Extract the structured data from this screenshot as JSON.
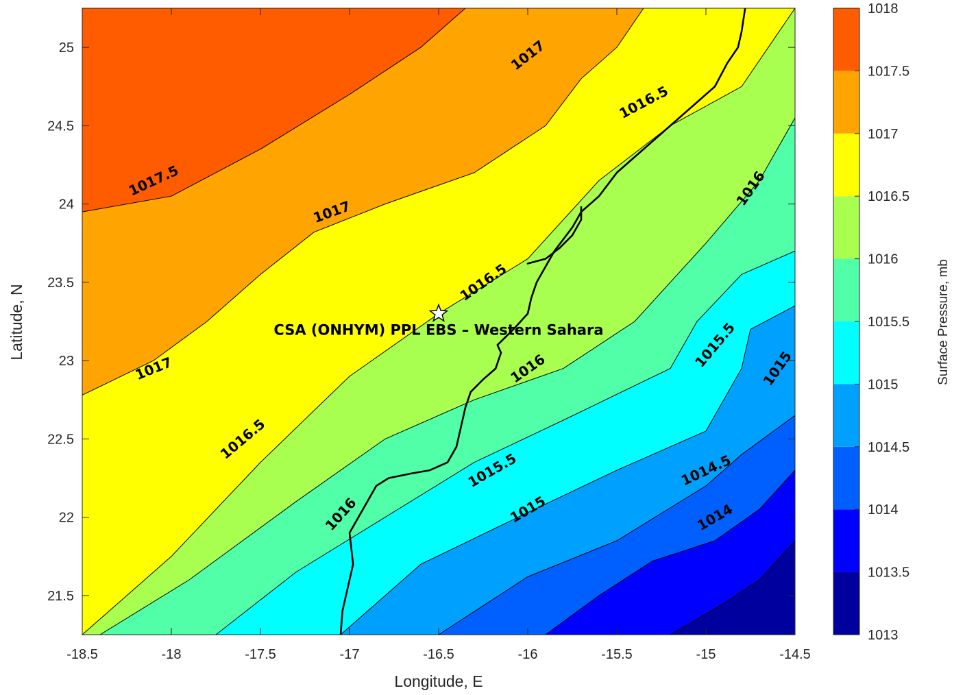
{
  "chart_data": {
    "type": "contour",
    "xlabel": "Longitude, E",
    "ylabel": "Latitude, N",
    "xlim": [
      -18.5,
      -14.5
    ],
    "ylim": [
      21.25,
      25.25
    ],
    "xticks": [
      -18.5,
      -18,
      -17.5,
      -17,
      -16.5,
      -16,
      -15.5,
      -15,
      -14.5
    ],
    "yticks": [
      21.5,
      22,
      22.5,
      23,
      23.5,
      24,
      24.5,
      25
    ],
    "colorbar": {
      "label": "Surface Pressure, mb",
      "levels": [
        1013,
        1013.5,
        1014,
        1014.5,
        1015,
        1015.5,
        1016,
        1016.5,
        1017,
        1017.5,
        1018
      ],
      "colors": [
        "#00009f",
        "#0000ff",
        "#0060ff",
        "#00a0ff",
        "#00ffff",
        "#50ffa8",
        "#a8ff50",
        "#ffff00",
        "#ffa400",
        "#ff5c00",
        "#ff0000"
      ]
    },
    "contour_levels": [
      {
        "level": 1013.5,
        "points": [
          [
            -15.2,
            21.25
          ],
          [
            -14.9,
            21.45
          ],
          [
            -14.7,
            21.6
          ],
          [
            -14.5,
            21.85
          ]
        ]
      },
      {
        "level": 1014.0,
        "points": [
          [
            -15.9,
            21.25
          ],
          [
            -15.6,
            21.5
          ],
          [
            -15.3,
            21.72
          ],
          [
            -14.95,
            21.85
          ],
          [
            -14.7,
            22.05
          ],
          [
            -14.5,
            22.3
          ]
        ]
      },
      {
        "level": 1014.5,
        "points": [
          [
            -16.5,
            21.25
          ],
          [
            -16.0,
            21.62
          ],
          [
            -15.5,
            21.85
          ],
          [
            -15.0,
            22.2
          ],
          [
            -14.8,
            22.4
          ],
          [
            -14.5,
            22.65
          ]
        ]
      },
      {
        "level": 1015.0,
        "points": [
          [
            -17.05,
            21.25
          ],
          [
            -16.6,
            21.7
          ],
          [
            -16.0,
            22.03
          ],
          [
            -15.5,
            22.3
          ],
          [
            -15.0,
            22.55
          ],
          [
            -14.8,
            22.95
          ],
          [
            -14.75,
            23.2
          ],
          [
            -14.5,
            23.35
          ]
        ]
      },
      {
        "level": 1015.5,
        "points": [
          [
            -17.75,
            21.25
          ],
          [
            -17.3,
            21.65
          ],
          [
            -16.8,
            22.0
          ],
          [
            -16.3,
            22.35
          ],
          [
            -15.8,
            22.62
          ],
          [
            -15.2,
            22.95
          ],
          [
            -15.05,
            23.25
          ],
          [
            -14.8,
            23.55
          ],
          [
            -14.5,
            23.7
          ]
        ]
      },
      {
        "level": 1016.0,
        "points": [
          [
            -18.4,
            21.25
          ],
          [
            -17.9,
            21.6
          ],
          [
            -17.3,
            22.1
          ],
          [
            -16.8,
            22.5
          ],
          [
            -16.3,
            22.75
          ],
          [
            -15.8,
            22.95
          ],
          [
            -15.4,
            23.25
          ],
          [
            -15.0,
            23.75
          ],
          [
            -14.7,
            24.15
          ],
          [
            -14.5,
            24.55
          ]
        ]
      },
      {
        "level": 1016.5,
        "points": [
          [
            -18.5,
            21.25
          ],
          [
            -18.0,
            21.75
          ],
          [
            -17.5,
            22.35
          ],
          [
            -17.0,
            22.9
          ],
          [
            -16.5,
            23.3
          ],
          [
            -16.0,
            23.65
          ],
          [
            -15.6,
            24.15
          ],
          [
            -15.2,
            24.5
          ],
          [
            -14.8,
            24.75
          ],
          [
            -14.5,
            25.25
          ]
        ]
      },
      {
        "level": 1017.0,
        "points": [
          [
            -18.5,
            22.78
          ],
          [
            -18.1,
            23.0
          ],
          [
            -17.8,
            23.25
          ],
          [
            -17.5,
            23.55
          ],
          [
            -17.2,
            23.82
          ],
          [
            -16.8,
            24.0
          ],
          [
            -16.3,
            24.2
          ],
          [
            -15.9,
            24.5
          ],
          [
            -15.7,
            24.8
          ],
          [
            -15.5,
            25.0
          ],
          [
            -15.35,
            25.25
          ]
        ]
      },
      {
        "level": 1017.5,
        "points": [
          [
            -18.5,
            23.95
          ],
          [
            -18.0,
            24.05
          ],
          [
            -17.5,
            24.35
          ],
          [
            -17.0,
            24.7
          ],
          [
            -16.6,
            25.0
          ],
          [
            -16.35,
            25.25
          ]
        ]
      }
    ],
    "contour_labels": [
      {
        "text": "1017.5",
        "x": -18.1,
        "y": 24.15,
        "angle": -25
      },
      {
        "text": "1017",
        "x": -16.0,
        "y": 24.95,
        "angle": -38
      },
      {
        "text": "1016.5",
        "x": -15.35,
        "y": 24.65,
        "angle": -28
      },
      {
        "text": "1017",
        "x": -17.1,
        "y": 23.95,
        "angle": -20
      },
      {
        "text": "1016",
        "x": -14.75,
        "y": 24.1,
        "angle": -55
      },
      {
        "text": "1016.5",
        "x": -16.25,
        "y": 23.5,
        "angle": -35
      },
      {
        "text": "1017",
        "x": -18.1,
        "y": 22.95,
        "angle": -22
      },
      {
        "text": "1015.5",
        "x": -14.95,
        "y": 23.1,
        "angle": -50
      },
      {
        "text": "1016",
        "x": -16.0,
        "y": 22.95,
        "angle": -35
      },
      {
        "text": "1015",
        "x": -14.6,
        "y": 22.95,
        "angle": -55
      },
      {
        "text": "1016.5",
        "x": -17.6,
        "y": 22.5,
        "angle": -40
      },
      {
        "text": "1015.5",
        "x": -16.2,
        "y": 22.3,
        "angle": -30
      },
      {
        "text": "1014.5",
        "x": -15.0,
        "y": 22.3,
        "angle": -25
      },
      {
        "text": "1016",
        "x": -17.05,
        "y": 22.02,
        "angle": -48
      },
      {
        "text": "1015",
        "x": -16.0,
        "y": 22.05,
        "angle": -30
      },
      {
        "text": "1014",
        "x": -14.95,
        "y": 22.0,
        "angle": -30
      }
    ],
    "coastline": [
      [
        -17.05,
        21.25
      ],
      [
        -17.04,
        21.4
      ],
      [
        -17.0,
        21.6
      ],
      [
        -16.98,
        21.7
      ],
      [
        -17.0,
        21.9
      ],
      [
        -16.95,
        22.0
      ],
      [
        -16.9,
        22.1
      ],
      [
        -16.85,
        22.2
      ],
      [
        -16.78,
        22.25
      ],
      [
        -16.65,
        22.28
      ],
      [
        -16.55,
        22.3
      ],
      [
        -16.45,
        22.35
      ],
      [
        -16.4,
        22.45
      ],
      [
        -16.37,
        22.6
      ],
      [
        -16.35,
        22.7
      ],
      [
        -16.32,
        22.8
      ],
      [
        -16.25,
        22.88
      ],
      [
        -16.18,
        22.95
      ],
      [
        -16.15,
        23.05
      ],
      [
        -16.17,
        23.1
      ],
      [
        -16.08,
        23.2
      ],
      [
        -16.0,
        23.3
      ],
      [
        -15.98,
        23.4
      ],
      [
        -15.95,
        23.5
      ],
      [
        -15.9,
        23.6
      ],
      [
        -15.85,
        23.7
      ],
      [
        -15.75,
        23.85
      ],
      [
        -15.7,
        23.95
      ],
      [
        -15.6,
        24.05
      ],
      [
        -15.5,
        24.2
      ],
      [
        -15.35,
        24.35
      ],
      [
        -15.2,
        24.5
      ],
      [
        -15.05,
        24.65
      ],
      [
        -14.95,
        24.75
      ],
      [
        -14.88,
        24.9
      ],
      [
        -14.82,
        25.0
      ],
      [
        -14.8,
        25.1
      ],
      [
        -14.78,
        25.25
      ]
    ],
    "peninsula": [
      [
        -15.7,
        23.98
      ],
      [
        -15.7,
        23.9
      ],
      [
        -15.75,
        23.8
      ],
      [
        -15.82,
        23.72
      ],
      [
        -15.9,
        23.65
      ],
      [
        -16.0,
        23.62
      ]
    ],
    "marker": {
      "x": -16.5,
      "y": 23.3,
      "symbol": "star"
    },
    "annotation": {
      "text": "CSA (ONHYM) PPL EBS  – Western Sahara",
      "x": -16.5,
      "y": 23.2
    }
  }
}
